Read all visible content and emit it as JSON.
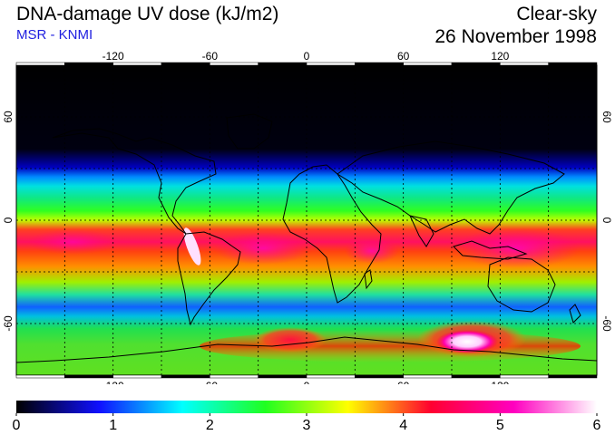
{
  "header": {
    "title": "DNA-damage UV dose (kJ/m2)",
    "subtitle": "MSR - KNMI",
    "condition": "Clear-sky",
    "date": "26 November 1998"
  },
  "map": {
    "projection": "equirectangular",
    "lon_range": [
      -180,
      180
    ],
    "lat_range": [
      -90,
      90
    ],
    "lon_ticks": [
      -120,
      -60,
      0,
      60,
      120
    ],
    "lat_ticks": [
      60,
      0,
      -60
    ],
    "grid": true,
    "colors": {
      "background_dark": "#000000",
      "gridline": "#000000",
      "coastline": "#000000"
    }
  },
  "colorbar": {
    "min": 0,
    "max": 6,
    "tick_labels": [
      "0",
      "1",
      "2",
      "3",
      "4",
      "5",
      "6"
    ],
    "stops": [
      "#000000",
      "#1010ff",
      "#00ffff",
      "#20ff20",
      "#ffff00",
      "#ff0030",
      "#ff00c0",
      "#ffffff"
    ]
  }
}
